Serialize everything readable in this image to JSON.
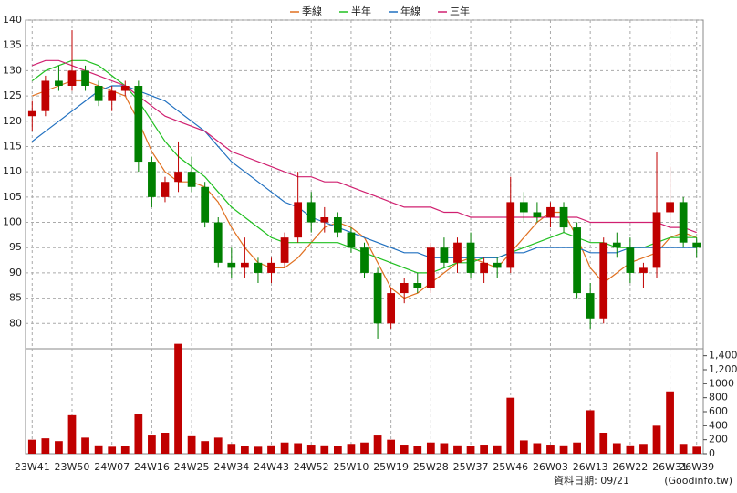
{
  "chart_data": {
    "type": "candlestick",
    "categories": [
      "23W41",
      null,
      null,
      "23W50",
      null,
      null,
      "24W07",
      null,
      null,
      "24W16",
      null,
      null,
      "24W25",
      null,
      null,
      "24W34",
      null,
      null,
      "24W43",
      null,
      null,
      "24W52",
      null,
      null,
      "25W10",
      null,
      null,
      "25W19",
      null,
      null,
      "25W28",
      null,
      null,
      "25W37",
      null,
      null,
      "25W46",
      null,
      null,
      "26W03",
      null,
      null,
      "26W13",
      null,
      null,
      "26W22",
      null,
      null,
      "26W31",
      null,
      "26W39"
    ],
    "open": [
      121,
      122,
      128,
      127,
      130,
      127,
      124,
      126,
      127,
      112,
      105,
      108,
      110,
      107,
      100,
      92,
      91,
      92,
      90,
      92,
      97,
      104,
      100,
      101,
      98,
      95,
      90,
      80,
      86,
      88,
      87,
      95,
      92,
      96,
      90,
      92,
      91,
      104,
      102,
      101,
      103,
      99,
      86,
      81,
      96,
      95,
      90,
      91,
      102,
      104,
      96
    ],
    "high": [
      124,
      129,
      131,
      138,
      131,
      128,
      127,
      128,
      128,
      113,
      109,
      116,
      113,
      108,
      101,
      95,
      97,
      93,
      93,
      98,
      110,
      106,
      103,
      102,
      99,
      96,
      91,
      87,
      89,
      90,
      96,
      97,
      97,
      98,
      93,
      93,
      109,
      106,
      104,
      104,
      104,
      100,
      88,
      97,
      98,
      97,
      92,
      114,
      111,
      105,
      97
    ],
    "low": [
      118,
      121,
      126,
      126,
      126,
      123,
      122,
      125,
      110,
      103,
      104,
      106,
      106,
      99,
      91,
      89,
      89,
      88,
      88,
      91,
      96,
      98,
      98,
      97,
      94,
      89,
      77,
      79,
      84,
      86,
      86,
      91,
      90,
      89,
      88,
      89,
      90,
      100,
      100,
      99,
      98,
      85,
      79,
      80,
      93,
      88,
      87,
      89,
      100,
      95,
      93
    ],
    "close": [
      122,
      128,
      127,
      130,
      127,
      124,
      126,
      127,
      112,
      105,
      108,
      110,
      107,
      100,
      92,
      91,
      92,
      90,
      92,
      97,
      104,
      100,
      101,
      98,
      95,
      90,
      80,
      86,
      88,
      87,
      95,
      92,
      96,
      90,
      92,
      91,
      104,
      102,
      101,
      103,
      99,
      86,
      81,
      96,
      95,
      90,
      91,
      102,
      104,
      96,
      95
    ],
    "open_color": "#c00000",
    "down_color": "#008000",
    "volume": [
      200,
      220,
      180,
      550,
      230,
      120,
      100,
      110,
      570,
      260,
      300,
      1570,
      250,
      180,
      230,
      140,
      110,
      100,
      120,
      160,
      150,
      130,
      120,
      110,
      140,
      160,
      260,
      200,
      130,
      110,
      160,
      150,
      120,
      110,
      130,
      120,
      800,
      190,
      150,
      130,
      120,
      160,
      620,
      300,
      150,
      120,
      140,
      400,
      890,
      140,
      100
    ],
    "volume_color": "#c00000",
    "series": [
      {
        "name": "季線",
        "color": "#e07020",
        "values": [
          125,
          126,
          127,
          128,
          128,
          127,
          126,
          125,
          120,
          114,
          110,
          108,
          108,
          107,
          104,
          99,
          95,
          92,
          91,
          91,
          93,
          96,
          99,
          100,
          99,
          97,
          92,
          87,
          85,
          86,
          88,
          90,
          92,
          93,
          92,
          91,
          94,
          97,
          100,
          102,
          102,
          97,
          91,
          88,
          90,
          92,
          93,
          94,
          97,
          98,
          97
        ]
      },
      {
        "name": "半年",
        "color": "#20c020",
        "values": [
          128,
          130,
          131,
          132,
          132,
          131,
          129,
          127,
          124,
          120,
          116,
          113,
          111,
          109,
          106,
          103,
          101,
          99,
          97,
          96,
          96,
          96,
          96,
          96,
          95,
          94,
          93,
          92,
          91,
          90,
          90,
          91,
          92,
          92,
          93,
          93,
          94,
          95,
          96,
          97,
          98,
          97,
          96,
          96,
          95,
          95,
          95,
          96,
          97,
          97,
          97
        ]
      },
      {
        "name": "年線",
        "color": "#2070c0",
        "values": [
          116,
          118,
          120,
          122,
          124,
          126,
          127,
          127,
          126,
          125,
          124,
          122,
          120,
          118,
          115,
          112,
          110,
          108,
          106,
          104,
          103,
          101,
          100,
          99,
          98,
          97,
          96,
          95,
          94,
          94,
          93,
          93,
          93,
          93,
          93,
          93,
          94,
          94,
          95,
          95,
          95,
          95,
          94,
          94,
          94,
          95,
          95,
          95,
          95,
          95,
          95
        ]
      },
      {
        "name": "三年",
        "color": "#d02070",
        "values": [
          131,
          132,
          132,
          131,
          130,
          129,
          128,
          127,
          125,
          123,
          121,
          120,
          119,
          118,
          116,
          114,
          113,
          112,
          111,
          110,
          109,
          109,
          108,
          108,
          107,
          106,
          105,
          104,
          103,
          103,
          103,
          102,
          102,
          101,
          101,
          101,
          101,
          101,
          101,
          101,
          101,
          101,
          100,
          100,
          100,
          100,
          100,
          100,
          99,
          99,
          98
        ]
      }
    ],
    "ylim": [
      75,
      140
    ],
    "yticks": [
      80,
      85,
      90,
      95,
      100,
      105,
      110,
      115,
      120,
      125,
      130,
      135,
      140
    ],
    "y2lim": [
      0,
      1500
    ],
    "y2ticks": [
      0,
      200,
      400,
      600,
      800,
      1000,
      {
        "value": 1200,
        "label": "1,200"
      },
      {
        "value": 1400,
        "label": "1,400"
      }
    ],
    "grid": true,
    "footer": "資料日期: 09/21",
    "source": "(Goodinfo.tw)"
  }
}
